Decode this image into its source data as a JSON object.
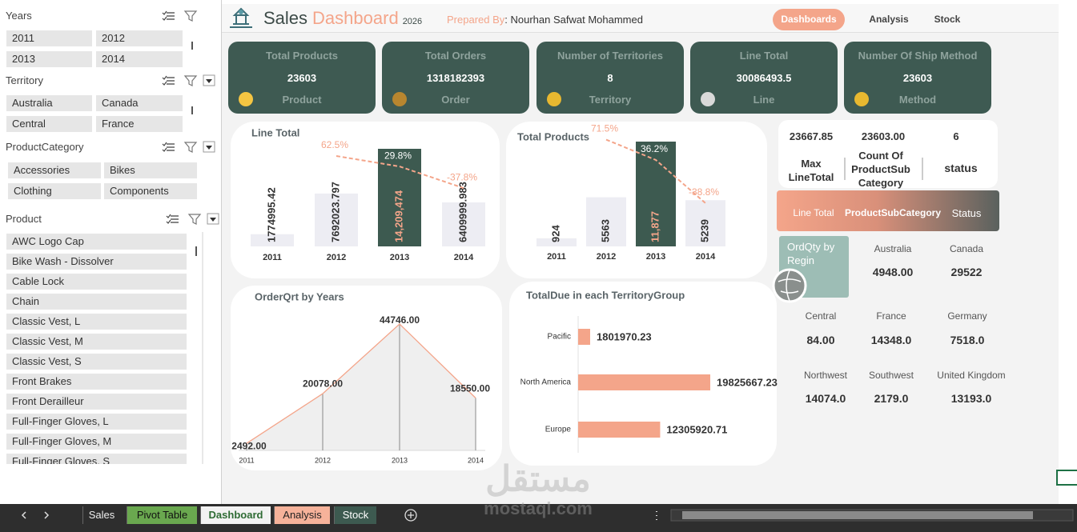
{
  "slicers": [
    {
      "title": "Years",
      "items": [
        "2011",
        "2012",
        "2013",
        "2014"
      ]
    },
    {
      "title": "Territory",
      "items": [
        "Australia",
        "Canada",
        "Central",
        "France"
      ]
    },
    {
      "title": "ProductCategory",
      "items": [
        "Accessories",
        "Bikes",
        "Clothing",
        "Components"
      ]
    },
    {
      "title": "Product",
      "items": [
        "AWC Logo Cap",
        "Bike Wash - Dissolver",
        "Cable Lock",
        "Chain",
        "Classic Vest, L",
        "Classic Vest, M",
        "Classic Vest, S",
        "Front Brakes",
        "Front Derailleur",
        "Full-Finger Gloves, L",
        "Full-Finger Gloves, M",
        "Full-Finger Gloves, S"
      ]
    }
  ],
  "header": {
    "title": "Sales",
    "title_accent": "Dashboard",
    "year": "2026",
    "prepared_label": "Prepared By",
    "prepared_name": ": Nourhan Safwat  Mohammed",
    "nav": [
      "Dashboards",
      "Analysis",
      "Stock"
    ]
  },
  "kpis": [
    {
      "title": "Total Products",
      "value": "23603",
      "unit": "Product"
    },
    {
      "title": "Total Orders",
      "value": "1318182393",
      "unit": "Order"
    },
    {
      "title": "Number of Territories",
      "value": "8",
      "unit": "Territory"
    },
    {
      "title": "Line Total",
      "value": "30086493.5",
      "unit": "Line"
    },
    {
      "title": "Number Of Ship Method",
      "value": "23603",
      "unit": "Method"
    }
  ],
  "chart_data": [
    {
      "type": "bar",
      "title": "Line Total",
      "categories": [
        "2011",
        "2012",
        "2013",
        "2014"
      ],
      "values": [
        1774995.42,
        7692023.797,
        14209474,
        6409999.983
      ],
      "value_labels": [
        "1774995.42",
        "7692023.797",
        "14,209,474",
        "6409999.983"
      ],
      "colors": [
        "#ededf3",
        "#ededf3",
        "#3d5a50",
        "#ededf3"
      ],
      "label_colors": [
        "#333333",
        "#333333",
        "#f4a58a",
        "#333333"
      ],
      "line_values": [
        null,
        62.5,
        29.8,
        -37.8
      ],
      "line_value_labels": [
        null,
        "62.5%",
        "29.8%",
        "-37.8%"
      ],
      "line_color": "#f4a58a",
      "line_label_colors": [
        null,
        "#f4a58a",
        "#ffffff",
        "#f4a58a"
      ]
    },
    {
      "type": "bar",
      "title": "Total Products",
      "categories": [
        "2011",
        "2012",
        "2013",
        "2014"
      ],
      "values": [
        924,
        5563,
        11877,
        5239
      ],
      "value_labels": [
        "924",
        "5563",
        "11,877",
        "5239"
      ],
      "colors": [
        "#ededf3",
        "#ededf3",
        "#3d5a50",
        "#ededf3"
      ],
      "label_colors": [
        "#333333",
        "#333333",
        "#f4a58a",
        "#333333"
      ],
      "line_values": [
        null,
        71.5,
        36.2,
        -38.8
      ],
      "line_value_labels": [
        null,
        "71.5%",
        "36.2%",
        "-38.8%"
      ],
      "line_color": "#f4a58a",
      "line_label_colors": [
        null,
        "#f4a58a",
        "#ffffff",
        "#f4a58a"
      ]
    },
    {
      "type": "area",
      "title": "OrderQrt by Years",
      "categories": [
        "2011",
        "2012",
        "2013",
        "2014"
      ],
      "values": [
        2492,
        20078,
        44746,
        18550
      ],
      "value_labels": [
        "2492.00",
        "20078.00",
        "44746.00",
        "18550.00"
      ],
      "color": "#f4a58a",
      "fill": "#efefef"
    },
    {
      "type": "barh",
      "title": "TotalDue in each TerritoryGroup",
      "categories": [
        "Pacific",
        "North America",
        "Europe"
      ],
      "values": [
        1801970.23,
        19825667.23,
        12305920.71
      ],
      "color": "#f4a58a"
    }
  ],
  "stats": {
    "values": [
      "23667.85",
      "23603.00",
      "6"
    ],
    "labels": [
      "Max LineTotal",
      "Count Of ProductSub Category",
      "status"
    ]
  },
  "banner": [
    "Line Total",
    "ProductSubCategory",
    "Status"
  ],
  "region_title": "OrdQty by Regin",
  "regions": [
    {
      "name": "Australia",
      "value": "4948.00"
    },
    {
      "name": "Canada",
      "value": "29522"
    },
    {
      "name": "Central",
      "value": "84.00"
    },
    {
      "name": "France",
      "value": "14348.0"
    },
    {
      "name": "Germany",
      "value": "7518.0"
    },
    {
      "name": "Northwest",
      "value": "14074.0"
    },
    {
      "name": "Southwest",
      "value": "2179.0"
    },
    {
      "name": "United Kingdom",
      "value": "13193.0"
    }
  ],
  "tabs": [
    "Sales",
    "Pivot Table",
    "Dashboard",
    "Analysis",
    "Stock"
  ],
  "watermark": {
    "arabic": "مستقل",
    "latin": "mostaql.com"
  }
}
